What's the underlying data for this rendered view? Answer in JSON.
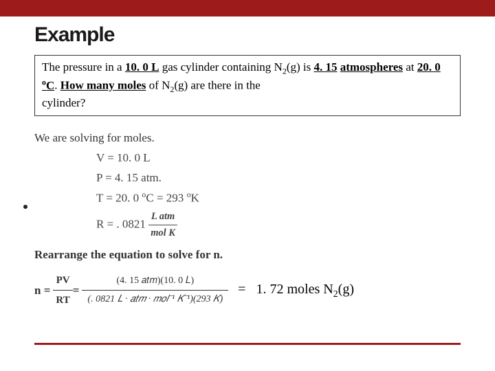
{
  "colors": {
    "accent": "#9e1b1b",
    "text": "#000000",
    "work_text": "#444444",
    "bg": "#ffffff"
  },
  "title": "Example",
  "problem": {
    "line1_a": "The pressure in a ",
    "vol": "10. 0 L",
    "line1_b": " gas cylinder containing N",
    "sub2": "2",
    "gstate": "(g) is ",
    "pressure": "4. 15",
    "atm_word": "atmospheres",
    "at": " at ",
    "temp": "20. 0 ",
    "deg": "o",
    "cunit": "C",
    "period": ".  ",
    "howmany": "How many moles",
    "ofn2": " of N",
    "endq": "(g) are there in the",
    "cyl": "cylinder?"
  },
  "work": {
    "solving": "We are solving for moles.",
    "v": "V = 10. 0 L",
    "p": "P = 4. 15 atm.",
    "t_left": "T = 20. 0 ",
    "t_deg": "o",
    "t_c": "C = 293 ",
    "t_k": "o",
    "t_kunit": "K",
    "r_left": "R = . 0821 ",
    "r_num": "L atm",
    "r_den": "mol K",
    "rearrange": "Rearrange the equation to solve for n.",
    "n_label": "n = ",
    "pv": "PV",
    "rt": "RT",
    "eq2": " = ",
    "calc_num": "(4. 15 𝑎𝑡𝑚)(10. 0 𝐿)",
    "calc_den": "(. 0821 𝐿 · 𝑎𝑡𝑚 · 𝑚𝑜𝑙⁻¹ 𝐾⁻¹)(293 𝐾)"
  },
  "answer": {
    "eq": "=",
    "value": "1. 72 moles N",
    "sub": "2",
    "tail": "(g)"
  }
}
